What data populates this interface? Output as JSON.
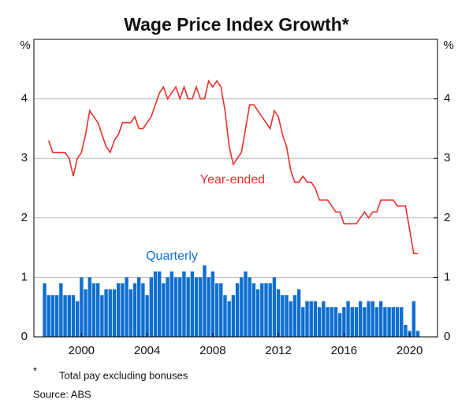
{
  "chart_data": {
    "type": "bar",
    "title": "Wage Price Index Growth*",
    "y_label": "%",
    "y2_label": "%",
    "xlim": [
      1997.1,
      2021.7
    ],
    "xticks": [
      2000,
      2004,
      2008,
      2012,
      2016,
      2020
    ],
    "ylim": [
      0,
      5
    ],
    "yticks": [
      0,
      1,
      2,
      3,
      4
    ],
    "y2lim": [
      0,
      5
    ],
    "y2ticks": [
      0,
      1,
      2,
      3,
      4
    ],
    "grid": true,
    "x": [
      1997.75,
      1998,
      1998.25,
      1998.5,
      1998.75,
      1999,
      1999.25,
      1999.5,
      1999.75,
      2000,
      2000.25,
      2000.5,
      2000.75,
      2001,
      2001.25,
      2001.5,
      2001.75,
      2002,
      2002.25,
      2002.5,
      2002.75,
      2003,
      2003.25,
      2003.5,
      2003.75,
      2004,
      2004.25,
      2004.5,
      2004.75,
      2005,
      2005.25,
      2005.5,
      2005.75,
      2006,
      2006.25,
      2006.5,
      2006.75,
      2007,
      2007.25,
      2007.5,
      2007.75,
      2008,
      2008.25,
      2008.5,
      2008.75,
      2009,
      2009.25,
      2009.5,
      2009.75,
      2010,
      2010.25,
      2010.5,
      2010.75,
      2011,
      2011.25,
      2011.5,
      2011.75,
      2012,
      2012.25,
      2012.5,
      2012.75,
      2013,
      2013.25,
      2013.5,
      2013.75,
      2014,
      2014.25,
      2014.5,
      2014.75,
      2015,
      2015.25,
      2015.5,
      2015.75,
      2016,
      2016.25,
      2016.5,
      2016.75,
      2017,
      2017.25,
      2017.5,
      2017.75,
      2018,
      2018.25,
      2018.5,
      2018.75,
      2019,
      2019.25,
      2019.5,
      2019.75,
      2020,
      2020.25,
      2020.5
    ],
    "series": [
      {
        "name": "Quarterly",
        "type": "bar",
        "color": "#0f6fd0",
        "values": [
          0.9,
          0.7,
          0.7,
          0.7,
          0.9,
          0.7,
          0.7,
          0.7,
          0.6,
          1.0,
          0.8,
          1.0,
          0.9,
          0.9,
          0.7,
          0.8,
          0.8,
          0.8,
          0.9,
          0.9,
          1.0,
          0.8,
          0.9,
          1.0,
          0.9,
          0.7,
          1.0,
          1.1,
          1.1,
          0.9,
          1.0,
          1.1,
          1.0,
          1.0,
          1.1,
          1.0,
          1.1,
          1.0,
          1.0,
          1.2,
          1.0,
          1.1,
          0.9,
          0.9,
          0.7,
          0.6,
          0.7,
          0.9,
          1.0,
          1.1,
          1.0,
          0.9,
          0.8,
          0.9,
          0.9,
          0.9,
          1.0,
          0.8,
          0.7,
          0.7,
          0.6,
          0.7,
          0.8,
          0.5,
          0.6,
          0.6,
          0.6,
          0.5,
          0.6,
          0.5,
          0.5,
          0.5,
          0.4,
          0.5,
          0.6,
          0.5,
          0.5,
          0.6,
          0.5,
          0.6,
          0.6,
          0.5,
          0.6,
          0.5,
          0.5,
          0.5,
          0.5,
          0.5,
          0.2,
          0.1,
          0.6,
          0.1
        ]
      },
      {
        "name": "Year-ended",
        "type": "line",
        "color": "#e8302a",
        "values": [
          null,
          3.3,
          3.1,
          3.1,
          3.1,
          3.1,
          3.0,
          2.7,
          3.0,
          3.1,
          3.4,
          3.8,
          3.7,
          3.6,
          3.4,
          3.2,
          3.1,
          3.3,
          3.4,
          3.6,
          3.6,
          3.6,
          3.7,
          3.5,
          3.5,
          3.6,
          3.7,
          3.9,
          4.1,
          4.2,
          4.0,
          4.1,
          4.2,
          4.0,
          4.2,
          4.0,
          4.0,
          4.2,
          4.0,
          4.0,
          4.3,
          4.2,
          4.3,
          4.2,
          3.8,
          3.2,
          2.9,
          3.0,
          3.1,
          3.5,
          3.9,
          3.9,
          3.8,
          3.7,
          3.6,
          3.5,
          3.8,
          3.7,
          3.4,
          3.2,
          2.8,
          2.6,
          2.6,
          2.7,
          2.6,
          2.6,
          2.5,
          2.3,
          2.3,
          2.3,
          2.2,
          2.1,
          2.1,
          1.9,
          1.9,
          1.9,
          1.9,
          2.0,
          2.1,
          2.0,
          2.1,
          2.1,
          2.3,
          2.3,
          2.3,
          2.3,
          2.2,
          2.2,
          2.2,
          1.8,
          1.4,
          1.4
        ]
      }
    ],
    "footnote_marker": "*",
    "footnote": "Total pay excluding bonuses",
    "source": "Source:   ABS"
  }
}
